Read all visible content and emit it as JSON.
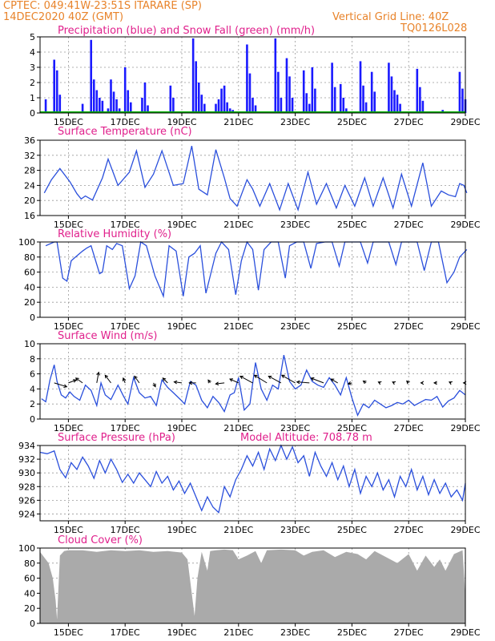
{
  "header": {
    "line1": "CPTEC:   049:41W-23:51S   ITARARE (SP)",
    "line2": "14DEC2020 40Z (GMT)",
    "grid_note": "Vertical Grid Line: 40Z",
    "model": "TQ0126L028",
    "altitude": "Model Altitude: 708.78 m"
  },
  "colors": {
    "header": "#e8832a",
    "title": "#e0208c",
    "precip": "#1a1aff",
    "snow": "#00b000",
    "line": "#2a4fdc",
    "cloud": "#aaaaaa",
    "wind_arrow": "#000000"
  },
  "x_ticks": [
    "15DEC",
    "17DEC",
    "19DEC",
    "21DEC",
    "23DEC",
    "25DEC",
    "27DEC",
    "29DEC"
  ],
  "chart_data": [
    {
      "type": "bar",
      "title": "Precipitation (blue) and Snow Fall (green) (mm/h)",
      "ylim": [
        0,
        5
      ],
      "yticks": [
        "0",
        "1",
        "2",
        "3",
        "4",
        "5"
      ],
      "x_days": [
        14.2,
        14.5,
        14.6,
        14.7,
        15.5,
        15.8,
        15.9,
        16.0,
        16.1,
        16.2,
        16.4,
        16.5,
        16.6,
        16.7,
        16.8,
        17.0,
        17.1,
        17.2,
        17.6,
        17.7,
        17.8,
        18.6,
        18.7,
        19.4,
        19.5,
        19.6,
        19.7,
        19.8,
        20.2,
        20.3,
        20.4,
        20.5,
        20.6,
        20.7,
        20.8,
        21.3,
        21.4,
        21.5,
        21.6,
        22.3,
        22.4,
        22.5,
        22.7,
        22.8,
        22.9,
        23.3,
        23.4,
        23.5,
        23.6,
        23.7,
        24.3,
        24.4,
        24.6,
        24.7,
        24.8,
        25.3,
        25.4,
        25.5,
        25.7,
        25.8,
        26.3,
        26.4,
        26.5,
        26.6,
        26.7,
        27.3,
        27.4,
        27.5,
        28.2,
        28.8,
        28.9,
        29.0
      ],
      "series": [
        {
          "name": "Precipitation",
          "values": [
            0.9,
            3.5,
            2.8,
            1.2,
            0.6,
            4.8,
            2.2,
            1.5,
            1.0,
            0.8,
            0.3,
            2.2,
            1.4,
            0.9,
            0.3,
            3.0,
            1.5,
            0.7,
            1.0,
            2.0,
            0.5,
            1.8,
            1.0,
            4.9,
            3.4,
            2.0,
            1.2,
            0.6,
            0.6,
            0.9,
            1.6,
            1.8,
            0.7,
            0.3,
            0.2,
            4.5,
            2.6,
            1.0,
            0.5,
            4.9,
            2.7,
            1.0,
            3.6,
            2.4,
            1.0,
            2.8,
            1.3,
            0.6,
            3.0,
            1.6,
            3.3,
            1.7,
            1.9,
            1.0,
            0.3,
            3.4,
            1.8,
            0.7,
            2.7,
            1.4,
            3.3,
            2.4,
            1.5,
            1.2,
            0.6,
            2.9,
            1.7,
            0.8,
            0.2,
            2.7,
            1.6,
            0.9
          ]
        },
        {
          "name": "Snow Fall",
          "values": [
            0,
            0,
            0,
            0,
            0,
            0,
            0,
            0,
            0,
            0,
            0,
            0,
            0,
            0,
            0,
            0,
            0,
            0,
            0,
            0,
            0,
            0,
            0,
            0,
            0,
            0,
            0,
            0,
            0,
            0,
            0,
            0,
            0,
            0,
            0,
            0,
            0,
            0,
            0,
            0,
            0,
            0,
            0,
            0,
            0,
            0,
            0,
            0,
            0,
            0,
            0,
            0,
            0,
            0,
            0,
            0,
            0,
            0,
            0,
            0,
            0,
            0,
            0,
            0,
            0,
            0,
            0,
            0,
            0,
            0,
            0,
            0
          ]
        }
      ]
    },
    {
      "type": "line",
      "title": "Surface Temperature (nC)",
      "ylim": [
        16,
        36
      ],
      "yticks": [
        "16",
        "20",
        "24",
        "28",
        "32",
        "36"
      ],
      "x": [
        14.15,
        14.4,
        14.7,
        15.05,
        15.3,
        15.45,
        15.6,
        15.85,
        16.2,
        16.4,
        16.75,
        17.15,
        17.4,
        17.7,
        18.0,
        18.3,
        18.7,
        19.05,
        19.35,
        19.6,
        19.9,
        20.2,
        20.5,
        20.7,
        20.95,
        21.3,
        21.5,
        21.75,
        22.1,
        22.45,
        22.75,
        23.1,
        23.45,
        23.75,
        24.1,
        24.45,
        24.75,
        25.1,
        25.45,
        25.75,
        26.1,
        26.45,
        26.75,
        27.1,
        27.5,
        27.8,
        28.15,
        28.4,
        28.65,
        28.8,
        28.95,
        29.05
      ],
      "series": [
        {
          "name": "",
          "values": [
            22.0,
            25.5,
            28.5,
            25.0,
            21.8,
            20.4,
            21.2,
            20.1,
            26.0,
            31.0,
            24.0,
            27.5,
            33.2,
            23.5,
            27.0,
            33.2,
            24.0,
            24.5,
            34.5,
            23.0,
            21.5,
            33.5,
            26.0,
            20.5,
            18.5,
            25.5,
            23.0,
            18.5,
            24.5,
            17.5,
            24.5,
            17.5,
            27.5,
            19.0,
            24.5,
            18.0,
            24.0,
            18.5,
            26.0,
            18.5,
            26.0,
            18.0,
            27.0,
            18.5,
            30.0,
            18.5,
            22.5,
            21.5,
            21.0,
            24.5,
            24.0,
            22.0
          ]
        }
      ]
    },
    {
      "type": "line",
      "title": "Relative Humidity (%)",
      "ylim": [
        0,
        100
      ],
      "yticks": [
        "0",
        "20",
        "40",
        "60",
        "80",
        "100"
      ],
      "x": [
        14.2,
        14.5,
        14.6,
        14.8,
        14.95,
        15.1,
        15.25,
        15.5,
        15.65,
        15.8,
        16.1,
        16.2,
        16.35,
        16.55,
        16.7,
        16.9,
        17.15,
        17.35,
        17.55,
        17.75,
        18.05,
        18.35,
        18.55,
        18.8,
        19.05,
        19.25,
        19.45,
        19.65,
        19.85,
        20.2,
        20.4,
        20.65,
        20.9,
        21.1,
        21.3,
        21.5,
        21.7,
        21.9,
        22.15,
        22.4,
        22.65,
        22.8,
        23.05,
        23.3,
        23.55,
        23.75,
        24.05,
        24.3,
        24.55,
        24.75,
        25.05,
        25.3,
        25.55,
        25.75,
        26.05,
        26.3,
        26.55,
        26.75,
        27.05,
        27.3,
        27.55,
        27.8,
        28.05,
        28.35,
        28.6,
        28.8,
        29.05
      ],
      "series": [
        {
          "name": "",
          "values": [
            95,
            100,
            100,
            52,
            48,
            75,
            80,
            88,
            92,
            95,
            58,
            60,
            95,
            90,
            98,
            95,
            38,
            55,
            100,
            95,
            55,
            28,
            95,
            88,
            28,
            80,
            85,
            95,
            32,
            85,
            100,
            90,
            30,
            75,
            100,
            90,
            36,
            90,
            100,
            100,
            52,
            95,
            100,
            100,
            65,
            98,
            100,
            100,
            68,
            100,
            100,
            100,
            72,
            100,
            100,
            100,
            70,
            100,
            100,
            100,
            62,
            100,
            100,
            46,
            60,
            80,
            90
          ]
        }
      ]
    },
    {
      "type": "line",
      "title": "Surface Wind (m/s)",
      "ylim": [
        0,
        10
      ],
      "yticks": [
        "0",
        "2",
        "4",
        "6",
        "8",
        "10"
      ],
      "x": [
        14.05,
        14.2,
        14.35,
        14.5,
        14.6,
        14.75,
        14.9,
        15.05,
        15.2,
        15.4,
        15.6,
        15.8,
        16.0,
        16.15,
        16.3,
        16.5,
        16.75,
        16.95,
        17.1,
        17.3,
        17.5,
        17.7,
        17.9,
        18.1,
        18.3,
        18.5,
        18.7,
        18.95,
        19.1,
        19.3,
        19.5,
        19.7,
        19.9,
        20.1,
        20.3,
        20.5,
        20.7,
        20.85,
        21.0,
        21.2,
        21.4,
        21.6,
        21.8,
        22.0,
        22.2,
        22.4,
        22.6,
        22.8,
        23.0,
        23.2,
        23.4,
        23.6,
        23.8,
        24.0,
        24.2,
        24.4,
        24.6,
        24.8,
        25.0,
        25.2,
        25.4,
        25.6,
        25.8,
        26.0,
        26.2,
        26.4,
        26.6,
        26.8,
        27.0,
        27.2,
        27.4,
        27.6,
        27.8,
        28.0,
        28.2,
        28.4,
        28.6,
        28.8,
        29.0
      ],
      "series": [
        {
          "name": "",
          "values": [
            2.7,
            2.3,
            5.2,
            7.2,
            5.0,
            3.2,
            2.8,
            3.6,
            3.0,
            2.5,
            4.5,
            3.8,
            1.8,
            4.8,
            3.2,
            2.6,
            4.5,
            3.0,
            2.0,
            5.5,
            3.5,
            2.8,
            3.0,
            1.8,
            5.2,
            4.2,
            3.5,
            2.6,
            2.0,
            5.0,
            4.5,
            2.5,
            1.5,
            3.0,
            2.2,
            1.0,
            3.2,
            3.5,
            5.5,
            1.2,
            2.0,
            7.5,
            4.0,
            2.5,
            4.5,
            4.0,
            8.5,
            5.0,
            4.0,
            4.5,
            6.5,
            5.0,
            4.5,
            4.2,
            5.5,
            4.5,
            3.2,
            5.5,
            2.8,
            0.5,
            2.0,
            1.5,
            2.5,
            2.0,
            1.5,
            1.8,
            2.2,
            2.0,
            2.5,
            1.8,
            2.2,
            2.6,
            2.5,
            3.0,
            1.6,
            2.4,
            2.8,
            3.8,
            3.2
          ]
        }
      ],
      "wind_vectors": {
        "x": [
          14.5,
          15.0,
          15.5,
          16.0,
          16.5,
          17.0,
          17.5,
          18.0,
          18.5,
          19.0,
          19.5,
          20.0,
          20.5,
          21.0,
          21.5,
          22.0,
          22.5,
          23.0,
          23.5,
          24.0,
          24.5,
          25.0,
          25.5,
          26.0,
          26.5,
          27.0,
          27.5,
          28.0,
          28.5,
          29.0
        ],
        "u": [
          2.6,
          1.6,
          -1.4,
          0.4,
          -1.2,
          -0.4,
          -1.0,
          0.4,
          -1.0,
          -1.6,
          -1.4,
          -0.4,
          -1.8,
          -1.8,
          -2.6,
          -2.6,
          -2.6,
          -2.8,
          -2.6,
          -2.6,
          -1.4,
          -0.8,
          -0.6,
          -0.4,
          -0.4,
          -0.4,
          -0.4,
          -0.6,
          -0.4,
          -0.4
        ],
        "v": [
          -0.8,
          0.6,
          1.0,
          2.2,
          1.6,
          1.0,
          1.4,
          -0.8,
          1.0,
          0.2,
          0.0,
          0.6,
          -0.2,
          0.8,
          1.4,
          1.6,
          1.4,
          1.6,
          0.2,
          1.0,
          0.8,
          -0.2,
          0.4,
          0.2,
          0.2,
          0.4,
          0.0,
          0.0,
          0.2,
          0.0
        ]
      }
    },
    {
      "type": "line",
      "title": "Surface Pressure (hPa)",
      "ylim": [
        923,
        934
      ],
      "yticks": [
        "924",
        "926",
        "928",
        "930",
        "932",
        "934"
      ],
      "x": [
        14.0,
        14.25,
        14.5,
        14.7,
        14.9,
        15.1,
        15.3,
        15.5,
        15.7,
        15.9,
        16.1,
        16.3,
        16.5,
        16.7,
        16.9,
        17.1,
        17.3,
        17.5,
        17.7,
        17.9,
        18.1,
        18.3,
        18.5,
        18.7,
        18.9,
        19.1,
        19.3,
        19.5,
        19.7,
        19.9,
        20.1,
        20.3,
        20.5,
        20.7,
        20.9,
        21.1,
        21.3,
        21.5,
        21.7,
        21.9,
        22.1,
        22.3,
        22.5,
        22.7,
        22.9,
        23.1,
        23.3,
        23.5,
        23.7,
        23.9,
        24.1,
        24.3,
        24.5,
        24.7,
        24.9,
        25.1,
        25.3,
        25.5,
        25.7,
        25.9,
        26.1,
        26.3,
        26.5,
        26.7,
        26.9,
        27.1,
        27.3,
        27.5,
        27.7,
        27.9,
        28.1,
        28.3,
        28.5,
        28.7,
        28.9,
        29.0
      ],
      "series": [
        {
          "name": "",
          "values": [
            933.0,
            932.8,
            933.2,
            930.5,
            929.3,
            931.5,
            930.5,
            932.3,
            931.0,
            929.2,
            931.8,
            930.0,
            932.0,
            930.5,
            928.6,
            929.8,
            928.5,
            930.0,
            929.0,
            928.0,
            930.2,
            928.5,
            929.5,
            927.5,
            928.8,
            927.0,
            928.5,
            926.5,
            924.5,
            926.5,
            925.0,
            924.2,
            928.0,
            926.5,
            929.0,
            930.5,
            932.5,
            931.0,
            933.0,
            930.5,
            933.5,
            931.8,
            934.0,
            932.0,
            933.8,
            931.5,
            932.5,
            929.5,
            933.0,
            931.0,
            929.5,
            931.5,
            929.0,
            931.0,
            928.0,
            930.5,
            927.0,
            929.5,
            928.0,
            930.0,
            927.5,
            929.0,
            926.5,
            929.5,
            928.0,
            930.5,
            927.5,
            929.5,
            926.8,
            929.0,
            927.0,
            928.5,
            926.5,
            927.5,
            926.0,
            928.5
          ]
        }
      ]
    },
    {
      "type": "area",
      "title": "Cloud Cover (%)",
      "ylim": [
        0,
        100
      ],
      "yticks": [
        "0",
        "20",
        "40",
        "60",
        "80",
        "100"
      ],
      "x": [
        14.0,
        14.3,
        14.45,
        14.55,
        14.6,
        14.7,
        14.85,
        15.0,
        15.5,
        16.0,
        16.5,
        17.0,
        17.5,
        18.0,
        18.5,
        19.0,
        19.2,
        19.35,
        19.45,
        19.55,
        19.7,
        19.9,
        20.0,
        20.2,
        20.5,
        20.8,
        21.0,
        21.3,
        21.6,
        21.8,
        22.0,
        22.5,
        23.0,
        23.3,
        23.6,
        24.0,
        24.4,
        24.8,
        25.2,
        25.5,
        25.8,
        26.2,
        26.6,
        27.0,
        27.3,
        27.6,
        27.9,
        28.1,
        28.3,
        28.6,
        28.9,
        29.0
      ],
      "series": [
        {
          "name": "",
          "values": [
            95,
            80,
            60,
            30,
            5,
            90,
            96,
            97,
            97,
            95,
            97,
            96,
            97,
            95,
            96,
            94,
            85,
            40,
            10,
            60,
            95,
            70,
            96,
            97,
            98,
            97,
            85,
            90,
            96,
            80,
            97,
            98,
            97,
            90,
            95,
            97,
            88,
            95,
            92,
            85,
            96,
            88,
            80,
            92,
            70,
            90,
            75,
            85,
            70,
            92,
            97,
            35
          ]
        }
      ]
    }
  ]
}
